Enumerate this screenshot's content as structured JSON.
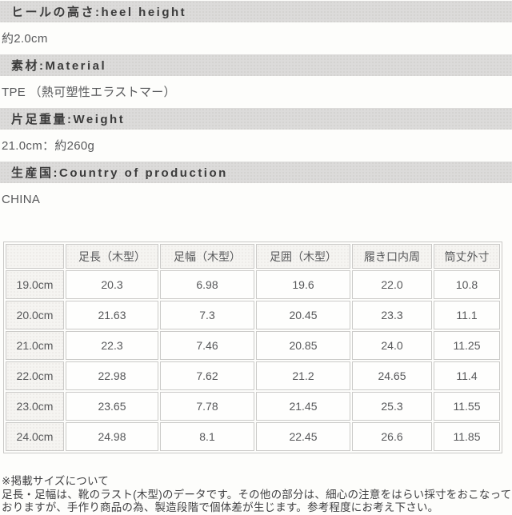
{
  "sections": [
    {
      "title": "ヒールの高さ:heel height",
      "value": "約2.0cm"
    },
    {
      "title": "素材:Material",
      "value": "TPE （熱可塑性エラストマー）"
    },
    {
      "title": "片足重量:Weight",
      "value": "21.0cm：約260g"
    },
    {
      "title": "生産国:Country of production",
      "value": "CHINA"
    }
  ],
  "size_table": {
    "columns": [
      "",
      "足長（木型）",
      "足幅（木型）",
      "足囲（木型）",
      "履き口内周",
      "筒丈外寸"
    ],
    "rows": [
      {
        "label": "19.0cm",
        "values": [
          "20.3",
          "6.98",
          "19.6",
          "22.0",
          "10.8"
        ]
      },
      {
        "label": "20.0cm",
        "values": [
          "21.63",
          "7.3",
          "20.45",
          "23.3",
          "11.1"
        ]
      },
      {
        "label": "21.0cm",
        "values": [
          "22.3",
          "7.46",
          "20.85",
          "24.0",
          "11.25"
        ]
      },
      {
        "label": "22.0cm",
        "values": [
          "22.98",
          "7.62",
          "21.2",
          "24.65",
          "11.4"
        ]
      },
      {
        "label": "23.0cm",
        "values": [
          "23.65",
          "7.78",
          "21.45",
          "25.3",
          "11.55"
        ]
      },
      {
        "label": "24.0cm",
        "values": [
          "24.98",
          "8.1",
          "22.45",
          "26.6",
          "11.85"
        ]
      }
    ]
  },
  "notes": {
    "heading": "※掲載サイズについて",
    "body": "足長・足幅は、靴のラスト(木型)のデータです。その他の部分は、細心の注意をはらい採寸をおこなっておりますが、手作り商品の為、製造段階で個体差が生じます。参考程度にお考え下さい。"
  },
  "colors": {
    "section_bar_bg": "#dcdbda",
    "table_border": "#cbcac8",
    "label_cell_bg": "#f5f4f1",
    "page_bg": "#fdfdfb",
    "text": "#58595b"
  }
}
